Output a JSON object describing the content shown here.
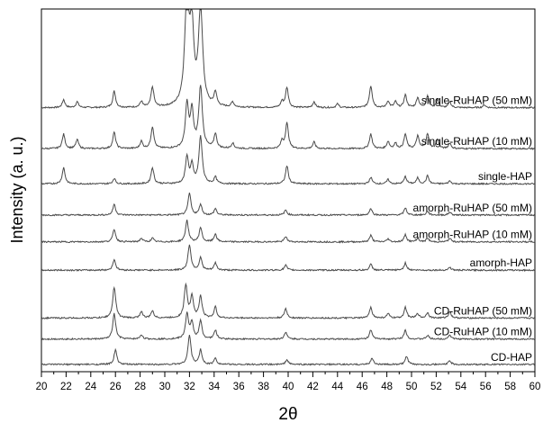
{
  "chart_data": {
    "type": "line",
    "xlabel": "2θ",
    "ylabel": "Intensity (a. u.)",
    "xlim": [
      20,
      60
    ],
    "x_ticks": [
      "20",
      "21",
      "22",
      "23",
      "24",
      "25",
      "26",
      "27",
      "28",
      "29",
      "30",
      "31",
      "32",
      "33",
      "34",
      "35",
      "36",
      "37",
      "38",
      "39",
      "40",
      "41",
      "42",
      "43",
      "44",
      "45",
      "46",
      "47",
      "48",
      "49",
      "50",
      "51",
      "52",
      "53",
      "54",
      "55",
      "56",
      "57",
      "58",
      "59",
      "60"
    ],
    "grid": false,
    "legend": "none",
    "series_color": "#4a4a4a",
    "series": [
      {
        "name": "single-RuHAP (50 mM)",
        "baseline": 0.728,
        "peaks": [
          [
            21.8,
            0.022
          ],
          [
            22.9,
            0.016
          ],
          [
            25.9,
            0.045
          ],
          [
            28.1,
            0.016
          ],
          [
            29.0,
            0.055
          ],
          [
            31.8,
            0.3
          ],
          [
            32.2,
            0.2
          ],
          [
            32.9,
            0.27
          ],
          [
            34.1,
            0.038
          ],
          [
            35.5,
            0.014
          ],
          [
            39.5,
            0.016
          ],
          [
            39.9,
            0.055
          ],
          [
            42.1,
            0.016
          ],
          [
            44.0,
            0.01
          ],
          [
            46.7,
            0.06
          ],
          [
            48.1,
            0.018
          ],
          [
            48.7,
            0.016
          ],
          [
            49.5,
            0.035
          ],
          [
            50.5,
            0.028
          ],
          [
            51.3,
            0.032
          ],
          [
            52.1,
            0.022
          ],
          [
            53.1,
            0.016
          ],
          [
            55.9,
            0.008
          ]
        ]
      },
      {
        "name": "single-RuHAP (10 mM)",
        "baseline": 0.615,
        "peaks": [
          [
            21.8,
            0.04
          ],
          [
            22.9,
            0.025
          ],
          [
            25.9,
            0.045
          ],
          [
            28.1,
            0.02
          ],
          [
            29.0,
            0.06
          ],
          [
            31.8,
            0.12
          ],
          [
            32.2,
            0.1
          ],
          [
            32.9,
            0.17
          ],
          [
            34.1,
            0.04
          ],
          [
            35.5,
            0.015
          ],
          [
            39.5,
            0.02
          ],
          [
            39.9,
            0.07
          ],
          [
            42.1,
            0.018
          ],
          [
            46.7,
            0.04
          ],
          [
            48.1,
            0.02
          ],
          [
            48.7,
            0.015
          ],
          [
            49.5,
            0.04
          ],
          [
            50.5,
            0.035
          ],
          [
            51.3,
            0.04
          ],
          [
            52.1,
            0.025
          ],
          [
            53.1,
            0.015
          ]
        ]
      },
      {
        "name": "single-HAP",
        "baseline": 0.518,
        "peaks": [
          [
            21.8,
            0.045
          ],
          [
            25.9,
            0.015
          ],
          [
            29.0,
            0.045
          ],
          [
            31.8,
            0.075
          ],
          [
            32.2,
            0.05
          ],
          [
            32.9,
            0.13
          ],
          [
            34.1,
            0.018
          ],
          [
            39.9,
            0.05
          ],
          [
            46.7,
            0.018
          ],
          [
            48.1,
            0.012
          ],
          [
            49.5,
            0.02
          ],
          [
            50.5,
            0.016
          ],
          [
            51.3,
            0.022
          ],
          [
            53.1,
            0.008
          ]
        ]
      },
      {
        "name": "amorph-RuHAP (50 mM)",
        "baseline": 0.432,
        "peaks": [
          [
            25.9,
            0.03
          ],
          [
            32.0,
            0.06
          ],
          [
            32.9,
            0.03
          ],
          [
            34.1,
            0.018
          ],
          [
            39.8,
            0.014
          ],
          [
            46.7,
            0.018
          ],
          [
            49.5,
            0.02
          ],
          [
            51.3,
            0.01
          ],
          [
            53.1,
            0.008
          ]
        ]
      },
      {
        "name": "amorph-RuHAP (10 mM)",
        "baseline": 0.358,
        "peaks": [
          [
            25.9,
            0.035
          ],
          [
            28.1,
            0.01
          ],
          [
            29.0,
            0.01
          ],
          [
            31.8,
            0.06
          ],
          [
            32.9,
            0.04
          ],
          [
            34.1,
            0.022
          ],
          [
            39.8,
            0.015
          ],
          [
            46.7,
            0.018
          ],
          [
            48.1,
            0.008
          ],
          [
            49.5,
            0.02
          ],
          [
            50.5,
            0.01
          ],
          [
            51.3,
            0.01
          ],
          [
            53.1,
            0.01
          ]
        ]
      },
      {
        "name": "amorph-HAP",
        "baseline": 0.28,
        "peaks": [
          [
            25.9,
            0.03
          ],
          [
            32.0,
            0.07
          ],
          [
            32.9,
            0.035
          ],
          [
            34.1,
            0.02
          ],
          [
            39.8,
            0.014
          ],
          [
            46.7,
            0.016
          ],
          [
            49.5,
            0.02
          ],
          [
            53.1,
            0.008
          ]
        ]
      },
      {
        "name": "CD-RuHAP (50 mM)",
        "baseline": 0.148,
        "peaks": [
          [
            25.9,
            0.085
          ],
          [
            28.1,
            0.018
          ],
          [
            29.0,
            0.02
          ],
          [
            31.7,
            0.09
          ],
          [
            32.2,
            0.06
          ],
          [
            32.9,
            0.06
          ],
          [
            34.1,
            0.03
          ],
          [
            39.8,
            0.026
          ],
          [
            46.7,
            0.03
          ],
          [
            48.1,
            0.012
          ],
          [
            49.5,
            0.03
          ],
          [
            50.5,
            0.012
          ],
          [
            51.3,
            0.015
          ],
          [
            53.1,
            0.018
          ]
        ]
      },
      {
        "name": "CD-RuHAP (10 mM)",
        "baseline": 0.09,
        "peaks": [
          [
            25.9,
            0.07
          ],
          [
            28.1,
            0.012
          ],
          [
            31.8,
            0.07
          ],
          [
            32.2,
            0.045
          ],
          [
            32.9,
            0.05
          ],
          [
            34.1,
            0.025
          ],
          [
            39.8,
            0.02
          ],
          [
            46.7,
            0.025
          ],
          [
            49.5,
            0.025
          ],
          [
            51.3,
            0.01
          ],
          [
            53.1,
            0.012
          ]
        ]
      },
      {
        "name": "CD-HAP",
        "baseline": 0.02,
        "peaks": [
          [
            26.0,
            0.04
          ],
          [
            32.0,
            0.08
          ],
          [
            32.9,
            0.04
          ],
          [
            34.1,
            0.018
          ],
          [
            39.9,
            0.014
          ],
          [
            46.8,
            0.018
          ],
          [
            49.6,
            0.022
          ],
          [
            53.1,
            0.01
          ]
        ]
      }
    ]
  }
}
